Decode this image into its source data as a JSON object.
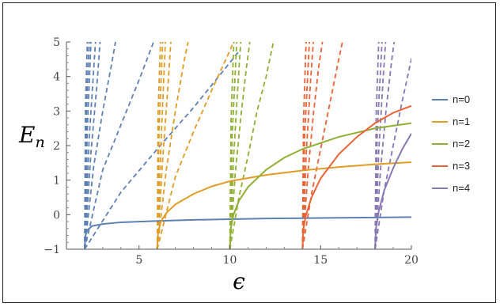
{
  "chart_data": {
    "type": "line",
    "xlabel": "ϵ",
    "ylabel_base": "E",
    "ylabel_sub": "n",
    "xlim": [
      1,
      20
    ],
    "ylim": [
      -1,
      5
    ],
    "x_ticks": [
      5,
      10,
      15,
      20
    ],
    "y_ticks": [
      -1,
      0,
      1,
      2,
      3,
      4,
      5
    ],
    "grid": false,
    "legend_position": "right",
    "series": [
      {
        "name": "n=0",
        "color": "#5e81b5",
        "solid": [
          [
            2.0,
            -1.0
          ],
          [
            2.05,
            -0.6
          ],
          [
            2.15,
            -0.45
          ],
          [
            2.4,
            -0.33
          ],
          [
            3,
            -0.27
          ],
          [
            4,
            -0.22
          ],
          [
            6,
            -0.18
          ],
          [
            8,
            -0.15
          ],
          [
            10,
            -0.13
          ],
          [
            12,
            -0.11
          ],
          [
            14,
            -0.1
          ],
          [
            16,
            -0.09
          ],
          [
            18,
            -0.08
          ],
          [
            20,
            -0.07
          ]
        ],
        "dashed": [
          [
            [
              2.0,
              -1.0
            ],
            [
              4,
              0.65
            ],
            [
              6,
              1.9
            ],
            [
              8,
              3.1
            ],
            [
              10,
              4.4
            ],
            [
              10.6,
              4.8
            ]
          ],
          [
            [
              2.0,
              -1.0
            ],
            [
              3,
              1.3
            ],
            [
              4,
              2.6
            ],
            [
              5,
              3.9
            ],
            [
              5.8,
              5.0
            ]
          ],
          [
            [
              2.0,
              -1.0
            ],
            [
              2.5,
              1.4
            ],
            [
              3.0,
              3.0
            ],
            [
              3.5,
              4.4
            ],
            [
              3.7,
              5.0
            ]
          ],
          [
            [
              2.0,
              -1.0
            ],
            [
              2.35,
              1.8
            ],
            [
              2.7,
              3.9
            ],
            [
              2.85,
              5.0
            ]
          ],
          [
            [
              2.0,
              -1.0
            ],
            [
              2.25,
              2.2
            ],
            [
              2.5,
              4.2
            ],
            [
              2.6,
              5.0
            ]
          ],
          [
            [
              2.0,
              -1.0
            ],
            [
              2.15,
              2.5
            ],
            [
              2.35,
              5.0
            ]
          ],
          [
            [
              2.0,
              -1.0
            ],
            [
              2.1,
              3.0
            ],
            [
              2.25,
              5.0
            ]
          ],
          [
            [
              2.0,
              -1.0
            ],
            [
              2.05,
              3.2
            ],
            [
              2.15,
              5.0
            ]
          ]
        ]
      },
      {
        "name": "n=1",
        "color": "#e19c24",
        "solid": [
          [
            6.0,
            -1.0
          ],
          [
            6.05,
            -0.5
          ],
          [
            6.2,
            -0.2
          ],
          [
            6.5,
            0.05
          ],
          [
            7,
            0.3
          ],
          [
            8,
            0.6
          ],
          [
            9,
            0.82
          ],
          [
            10,
            0.97
          ],
          [
            12,
            1.15
          ],
          [
            14,
            1.28
          ],
          [
            16,
            1.38
          ],
          [
            18,
            1.46
          ],
          [
            20,
            1.52
          ]
        ],
        "dashed": [
          [
            [
              6.0,
              -1.0
            ],
            [
              7,
              1.1
            ],
            [
              8,
              2.4
            ],
            [
              9,
              3.6
            ],
            [
              10,
              4.75
            ],
            [
              10.2,
              5.0
            ]
          ],
          [
            [
              6.0,
              -1.0
            ],
            [
              6.5,
              1.3
            ],
            [
              7.0,
              3.0
            ],
            [
              7.5,
              4.5
            ],
            [
              7.7,
              5.0
            ]
          ],
          [
            [
              6.0,
              -1.0
            ],
            [
              6.3,
              1.6
            ],
            [
              6.6,
              3.8
            ],
            [
              6.75,
              5.0
            ]
          ],
          [
            [
              6.0,
              -1.0
            ],
            [
              6.2,
              2.0
            ],
            [
              6.45,
              5.0
            ]
          ],
          [
            [
              6.0,
              -1.0
            ],
            [
              6.1,
              2.5
            ],
            [
              6.3,
              5.0
            ]
          ],
          [
            [
              6.0,
              -1.0
            ],
            [
              6.05,
              3.0
            ],
            [
              6.18,
              5.0
            ]
          ]
        ]
      },
      {
        "name": "n=2",
        "color": "#8fb032",
        "solid": [
          [
            10.0,
            -1.0
          ],
          [
            10.05,
            -0.4
          ],
          [
            10.2,
            0.0
          ],
          [
            10.5,
            0.4
          ],
          [
            11,
            0.8
          ],
          [
            12,
            1.3
          ],
          [
            13,
            1.65
          ],
          [
            14,
            1.9
          ],
          [
            16,
            2.25
          ],
          [
            18,
            2.5
          ],
          [
            20,
            2.65
          ]
        ],
        "dashed": [
          [
            [
              10.0,
              -1.0
            ],
            [
              10.5,
              0.5
            ],
            [
              11,
              1.7
            ],
            [
              11.5,
              3.0
            ],
            [
              12,
              4.0
            ],
            [
              12.4,
              5.0
            ]
          ],
          [
            [
              10.0,
              -1.0
            ],
            [
              10.3,
              1.2
            ],
            [
              10.6,
              2.8
            ],
            [
              10.9,
              4.2
            ],
            [
              11.1,
              5.0
            ]
          ],
          [
            [
              10.0,
              -1.0
            ],
            [
              10.2,
              1.6
            ],
            [
              10.45,
              3.8
            ],
            [
              10.6,
              5.0
            ]
          ],
          [
            [
              10.0,
              -1.0
            ],
            [
              10.12,
              2.2
            ],
            [
              10.38,
              5.0
            ]
          ],
          [
            [
              10.0,
              -1.0
            ],
            [
              10.07,
              2.8
            ],
            [
              10.22,
              5.0
            ]
          ]
        ]
      },
      {
        "name": "n=3",
        "color": "#eb6235",
        "solid": [
          [
            14.0,
            -1.0
          ],
          [
            14.05,
            -0.4
          ],
          [
            14.2,
            0.0
          ],
          [
            14.5,
            0.5
          ],
          [
            15,
            1.05
          ],
          [
            16,
            1.75
          ],
          [
            17,
            2.25
          ],
          [
            18,
            2.65
          ],
          [
            19,
            2.95
          ],
          [
            20,
            3.15
          ]
        ],
        "dashed": [
          [
            [
              14.0,
              -1.0
            ],
            [
              14.5,
              0.6
            ],
            [
              15,
              1.9
            ],
            [
              15.5,
              3.2
            ],
            [
              16,
              4.5
            ],
            [
              16.2,
              5.0
            ]
          ],
          [
            [
              14.0,
              -1.0
            ],
            [
              14.3,
              1.2
            ],
            [
              14.6,
              2.9
            ],
            [
              14.9,
              4.3
            ],
            [
              15.1,
              5.0
            ]
          ],
          [
            [
              14.0,
              -1.0
            ],
            [
              14.2,
              1.7
            ],
            [
              14.45,
              3.9
            ],
            [
              14.6,
              5.0
            ]
          ],
          [
            [
              14.0,
              -1.0
            ],
            [
              14.12,
              2.3
            ],
            [
              14.38,
              5.0
            ]
          ],
          [
            [
              14.0,
              -1.0
            ],
            [
              14.06,
              2.8
            ],
            [
              14.2,
              5.0
            ]
          ]
        ]
      },
      {
        "name": "n=4",
        "color": "#8778b3",
        "solid": [
          [
            18.0,
            -1.0
          ],
          [
            18.05,
            -0.4
          ],
          [
            18.2,
            0.1
          ],
          [
            18.5,
            0.7
          ],
          [
            19,
            1.35
          ],
          [
            19.5,
            1.9
          ],
          [
            20,
            2.35
          ]
        ],
        "dashed": [
          [
            [
              18.0,
              -1.0
            ],
            [
              18.5,
              0.7
            ],
            [
              19,
              2.0
            ],
            [
              19.5,
              3.3
            ],
            [
              20,
              4.5
            ],
            [
              20,
              4.6
            ]
          ],
          [
            [
              18.0,
              -1.0
            ],
            [
              18.3,
              1.3
            ],
            [
              18.6,
              3.0
            ],
            [
              18.9,
              4.4
            ],
            [
              19.05,
              5.0
            ]
          ],
          [
            [
              18.0,
              -1.0
            ],
            [
              18.2,
              1.8
            ],
            [
              18.45,
              4.0
            ],
            [
              18.58,
              5.0
            ]
          ],
          [
            [
              18.0,
              -1.0
            ],
            [
              18.12,
              2.4
            ],
            [
              18.38,
              5.0
            ]
          ],
          [
            [
              18.0,
              -1.0
            ],
            [
              18.06,
              2.9
            ],
            [
              18.2,
              5.0
            ]
          ]
        ]
      }
    ]
  }
}
